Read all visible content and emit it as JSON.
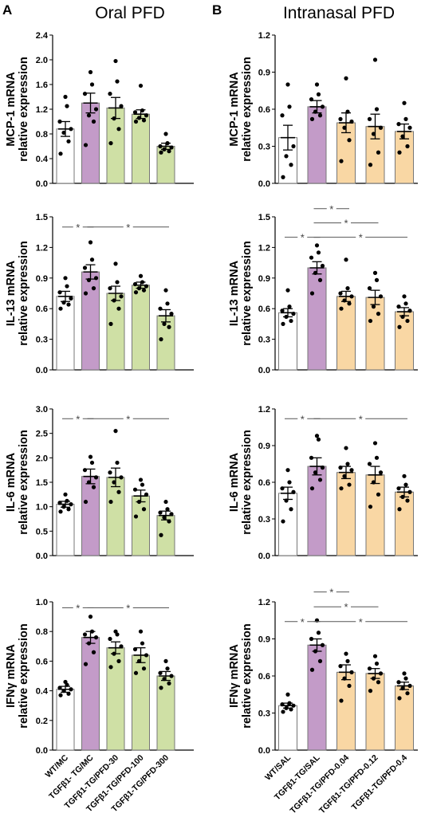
{
  "panels": [
    {
      "letter": "A",
      "title": "Oral PFD"
    },
    {
      "letter": "B",
      "title": "Intranasal PFD"
    }
  ],
  "colors": {
    "control": "#ffffff",
    "tg": "#c39bc8",
    "oral": "#cfe0a5",
    "intranasal": "#f9d7a4",
    "bar_edge": "#777777",
    "dot": "#000000",
    "sig_line": "#555555"
  },
  "chart_data": [
    {
      "type": "bar",
      "panel": "A",
      "row": 1,
      "ylabel": [
        "MCP-1 mRNA",
        "relative expression"
      ],
      "ylim": [
        0,
        2.4
      ],
      "yticks": [
        "0.0",
        "0.4",
        "0.8",
        "1.2",
        "1.6",
        "2.0",
        "2.4"
      ],
      "categories": [
        "WT/MC",
        "TGFβ1- TG/MC",
        "TGFβ1-TG/PFD-30",
        "TGFβ1-TG/PFD-100",
        "TGFβ1-TG/PFD-300"
      ],
      "means": [
        0.88,
        1.3,
        1.22,
        1.12,
        0.6
      ],
      "sem": [
        0.12,
        0.16,
        0.17,
        0.07,
        0.05
      ],
      "points": [
        [
          0.48,
          0.68,
          0.82,
          0.88,
          1.0,
          1.25,
          1.4
        ],
        [
          0.62,
          1.0,
          1.1,
          1.2,
          1.45,
          1.6,
          1.8
        ],
        [
          0.65,
          0.88,
          1.05,
          1.25,
          1.45,
          1.65,
          1.98
        ],
        [
          1.0,
          1.02,
          1.06,
          1.1,
          1.15,
          1.18,
          1.58
        ],
        [
          0.5,
          0.52,
          0.55,
          0.58,
          0.6,
          0.65,
          0.8
        ]
      ],
      "significance": []
    },
    {
      "type": "bar",
      "panel": "A",
      "row": 2,
      "ylabel": [
        "IL-13 mRNA",
        "relative expression"
      ],
      "ylim": [
        0,
        1.5
      ],
      "yticks": [
        "0.0",
        "0.3",
        "0.6",
        "0.9",
        "1.2",
        "1.5"
      ],
      "categories": [
        "WT/MC",
        "TGFβ1- TG/MC",
        "TGFβ1-TG/PFD-30",
        "TGFβ1-TG/PFD-100",
        "TGFβ1-TG/PFD-300"
      ],
      "means": [
        0.72,
        0.96,
        0.75,
        0.83,
        0.53
      ],
      "sem": [
        0.05,
        0.07,
        0.07,
        0.03,
        0.06
      ],
      "points": [
        [
          0.6,
          0.64,
          0.66,
          0.7,
          0.76,
          0.82,
          0.9
        ],
        [
          0.75,
          0.8,
          0.88,
          0.9,
          1.0,
          1.08,
          1.25
        ],
        [
          0.45,
          0.6,
          0.68,
          0.72,
          0.8,
          0.86,
          1.04
        ],
        [
          0.76,
          0.78,
          0.8,
          0.82,
          0.84,
          0.86,
          0.92
        ],
        [
          0.3,
          0.42,
          0.45,
          0.55,
          0.6,
          0.65,
          0.78
        ]
      ],
      "significance": [
        {
          "from": 0,
          "to": 1,
          "label": "*",
          "level": 1.4
        },
        {
          "from": 1,
          "to": 4,
          "label": "*",
          "level": 1.4
        }
      ]
    },
    {
      "type": "bar",
      "panel": "A",
      "row": 3,
      "ylabel": [
        "IL-6 mRNA",
        "relative expression"
      ],
      "ylim": [
        0,
        3.0
      ],
      "yticks": [
        "0.0",
        "0.5",
        "1.0",
        "1.5",
        "2.0",
        "2.5",
        "3.0"
      ],
      "categories": [
        "WT/MC",
        "TGFβ1- TG/MC",
        "TGFβ1-TG/PFD-30",
        "TGFβ1-TG/PFD-100",
        "TGFβ1-TG/PFD-300"
      ],
      "means": [
        1.05,
        1.62,
        1.6,
        1.22,
        0.82
      ],
      "sem": [
        0.06,
        0.15,
        0.19,
        0.12,
        0.09
      ],
      "points": [
        [
          0.9,
          0.95,
          1.0,
          1.05,
          1.08,
          1.12,
          1.25
        ],
        [
          1.1,
          1.4,
          1.5,
          1.6,
          1.75,
          1.9,
          2.02
        ],
        [
          1.1,
          1.3,
          1.5,
          1.6,
          1.7,
          1.9,
          2.55
        ],
        [
          0.8,
          0.95,
          1.1,
          1.25,
          1.35,
          1.45,
          1.55
        ],
        [
          0.42,
          0.7,
          0.78,
          0.85,
          0.88,
          0.95,
          1.1
        ]
      ],
      "significance": [
        {
          "from": 0,
          "to": 1,
          "label": "*",
          "level": 2.8
        },
        {
          "from": 1,
          "to": 4,
          "label": "*",
          "level": 2.8
        }
      ]
    },
    {
      "type": "bar",
      "panel": "A",
      "row": 4,
      "ylabel": [
        "IFNγ mRNA",
        "relative expression"
      ],
      "ylim": [
        0,
        1.0
      ],
      "yticks": [
        "0.0",
        "0.2",
        "0.4",
        "0.6",
        "0.8",
        "1.0"
      ],
      "categories": [
        "WT/MC",
        "TGFβ1- TG/MC",
        "TGFβ1-TG/PFD-30",
        "TGFβ1-TG/PFD-100",
        "TGFβ1-TG/PFD-300"
      ],
      "means": [
        0.41,
        0.76,
        0.69,
        0.64,
        0.5
      ],
      "sem": [
        0.02,
        0.04,
        0.04,
        0.05,
        0.03
      ],
      "points": [
        [
          0.37,
          0.38,
          0.4,
          0.41,
          0.42,
          0.44,
          0.46
        ],
        [
          0.58,
          0.66,
          0.72,
          0.76,
          0.78,
          0.8,
          0.9
        ],
        [
          0.56,
          0.6,
          0.65,
          0.7,
          0.75,
          0.78,
          0.8
        ],
        [
          0.52,
          0.55,
          0.6,
          0.64,
          0.68,
          0.72,
          0.8
        ],
        [
          0.42,
          0.45,
          0.48,
          0.5,
          0.52,
          0.55,
          0.6
        ]
      ],
      "significance": [
        {
          "from": 0,
          "to": 1,
          "label": "*",
          "level": 0.96
        },
        {
          "from": 1,
          "to": 4,
          "label": "*",
          "level": 0.96
        }
      ]
    },
    {
      "type": "bar",
      "panel": "B",
      "row": 1,
      "ylabel": [
        "MCP-1 mRNA",
        "relative expression"
      ],
      "ylim": [
        0,
        1.2
      ],
      "yticks": [
        "0.0",
        "0.3",
        "0.6",
        "0.9",
        "1.2"
      ],
      "categories": [
        "WT/SAL",
        "TGFβ1-TG/SAL",
        "TGFβ1-TG/PFD-0.04",
        "TGFβ1-TG/PFD-0.12",
        "TGFβ1-TG/PFD-0.4"
      ],
      "means": [
        0.37,
        0.62,
        0.49,
        0.46,
        0.42
      ],
      "sem": [
        0.1,
        0.05,
        0.08,
        0.1,
        0.06
      ],
      "points": [
        [
          0.05,
          0.15,
          0.22,
          0.3,
          0.55,
          0.62,
          0.8
        ],
        [
          0.52,
          0.55,
          0.58,
          0.62,
          0.68,
          0.72,
          0.8
        ],
        [
          0.18,
          0.35,
          0.45,
          0.5,
          0.52,
          0.58,
          0.85
        ],
        [
          0.15,
          0.25,
          0.4,
          0.45,
          0.52,
          0.6,
          1.0
        ],
        [
          0.25,
          0.3,
          0.38,
          0.45,
          0.48,
          0.52,
          0.65
        ]
      ],
      "significance": []
    },
    {
      "type": "bar",
      "panel": "B",
      "row": 2,
      "ylabel": [
        "IL-13 mRNA",
        "relative expression"
      ],
      "ylim": [
        0,
        1.5
      ],
      "yticks": [
        "0.0",
        "0.3",
        "0.6",
        "0.9",
        "1.2",
        "1.5"
      ],
      "categories": [
        "WT/SAL",
        "TGFβ1-TG/SAL",
        "TGFβ1-TG/PFD-0.04",
        "TGFβ1-TG/PFD-0.12",
        "TGFβ1-TG/PFD-0.4"
      ],
      "means": [
        0.56,
        1.0,
        0.72,
        0.71,
        0.57
      ],
      "sem": [
        0.04,
        0.06,
        0.05,
        0.07,
        0.04
      ],
      "points": [
        [
          0.45,
          0.48,
          0.52,
          0.55,
          0.58,
          0.62,
          0.78
        ],
        [
          0.75,
          0.88,
          0.95,
          1.02,
          1.1,
          1.15,
          1.22
        ],
        [
          0.6,
          0.65,
          0.68,
          0.72,
          0.75,
          0.8,
          1.08
        ],
        [
          0.48,
          0.55,
          0.62,
          0.72,
          0.8,
          0.88,
          0.95
        ],
        [
          0.42,
          0.48,
          0.52,
          0.58,
          0.62,
          0.65,
          0.72
        ]
      ],
      "significance": [
        {
          "from": 1,
          "to": 2,
          "label": "*",
          "level": 1.58
        },
        {
          "from": 1,
          "to": 3,
          "label": "*",
          "level": 1.44
        },
        {
          "from": 0,
          "to": 1,
          "label": "*",
          "level": 1.3
        },
        {
          "from": 1,
          "to": 4,
          "label": "*",
          "level": 1.3
        }
      ]
    },
    {
      "type": "bar",
      "panel": "B",
      "row": 3,
      "ylabel": [
        "IL-6 mRNA",
        "relative expression"
      ],
      "ylim": [
        0,
        1.2
      ],
      "yticks": [
        "0.0",
        "0.3",
        "0.6",
        "0.9",
        "1.2"
      ],
      "categories": [
        "WT/SAL",
        "TGFβ1-TG/SAL",
        "TGFβ1-TG/PFD-0.04",
        "TGFβ1-TG/PFD-0.12",
        "TGFβ1-TG/PFD-0.4"
      ],
      "means": [
        0.51,
        0.73,
        0.68,
        0.66,
        0.52
      ],
      "sem": [
        0.05,
        0.07,
        0.05,
        0.07,
        0.04
      ],
      "points": [
        [
          0.28,
          0.38,
          0.45,
          0.52,
          0.55,
          0.6,
          0.7
        ],
        [
          0.55,
          0.62,
          0.68,
          0.72,
          0.8,
          0.95,
          0.98
        ],
        [
          0.55,
          0.58,
          0.65,
          0.7,
          0.72,
          0.75,
          0.88
        ],
        [
          0.4,
          0.5,
          0.6,
          0.68,
          0.75,
          0.8,
          0.92
        ],
        [
          0.38,
          0.45,
          0.48,
          0.52,
          0.55,
          0.58,
          0.65
        ]
      ],
      "significance": [
        {
          "from": 0,
          "to": 1,
          "label": "*",
          "level": 1.12
        },
        {
          "from": 1,
          "to": 4,
          "label": "*",
          "level": 1.12
        }
      ]
    },
    {
      "type": "bar",
      "panel": "B",
      "row": 4,
      "ylabel": [
        "IFNγ mRNA",
        "relative expression"
      ],
      "ylim": [
        0,
        1.2
      ],
      "yticks": [
        "0.0",
        "0.3",
        "0.6",
        "0.9",
        "1.2"
      ],
      "categories": [
        "WT/SAL",
        "TGFβ1-TG/SAL",
        "TGFβ1-TG/PFD-0.04",
        "TGFβ1-TG/PFD-0.12",
        "TGFβ1-TG/PFD-0.4"
      ],
      "means": [
        0.36,
        0.85,
        0.63,
        0.62,
        0.52
      ],
      "sem": [
        0.02,
        0.05,
        0.06,
        0.04,
        0.03
      ],
      "points": [
        [
          0.31,
          0.33,
          0.34,
          0.36,
          0.37,
          0.38,
          0.45
        ],
        [
          0.65,
          0.72,
          0.8,
          0.85,
          0.9,
          0.95,
          1.05
        ],
        [
          0.4,
          0.52,
          0.58,
          0.63,
          0.68,
          0.72,
          0.78
        ],
        [
          0.48,
          0.55,
          0.58,
          0.62,
          0.66,
          0.7,
          0.76
        ],
        [
          0.42,
          0.46,
          0.5,
          0.52,
          0.55,
          0.58,
          0.62
        ]
      ],
      "significance": [
        {
          "from": 1,
          "to": 2,
          "label": "*",
          "level": 1.28
        },
        {
          "from": 1,
          "to": 3,
          "label": "*",
          "level": 1.16
        },
        {
          "from": 0,
          "to": 1,
          "label": "*",
          "level": 1.04
        },
        {
          "from": 1,
          "to": 4,
          "label": "*",
          "level": 1.04
        }
      ]
    }
  ]
}
